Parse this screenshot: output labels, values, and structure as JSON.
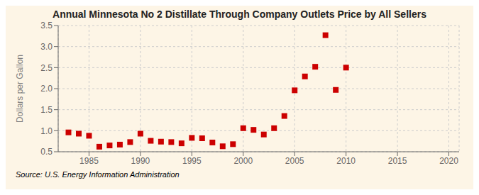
{
  "chart_data": {
    "type": "scatter",
    "title": "Annual Minnesota No 2 Distillate Through Company Outlets Price by All Sellers",
    "ylabel": "Dollars per Gallon",
    "annotations": [
      "Source: U.S. Energy Information Administration"
    ],
    "x": [
      1983,
      1984,
      1985,
      1986,
      1987,
      1988,
      1989,
      1990,
      1991,
      1992,
      1993,
      1994,
      1995,
      1996,
      1997,
      1998,
      1999,
      2000,
      2001,
      2002,
      2003,
      2004,
      2005,
      2006,
      2007,
      2008,
      2009,
      2010
    ],
    "values": [
      0.96,
      0.93,
      0.88,
      0.62,
      0.65,
      0.67,
      0.73,
      0.93,
      0.76,
      0.74,
      0.73,
      0.7,
      0.83,
      0.82,
      0.72,
      0.63,
      0.68,
      1.06,
      1.02,
      0.91,
      1.06,
      1.35,
      1.96,
      2.29,
      2.52,
      3.27,
      1.97,
      2.5
    ],
    "color": "#cc0000",
    "marker": "square",
    "xlim": [
      1982,
      2021
    ],
    "ylim": [
      0.5,
      3.5
    ],
    "xticks": [
      1985,
      1990,
      1995,
      2000,
      2005,
      2010,
      2015,
      2020
    ],
    "yticks": [
      0.5,
      {
        "value": 1,
        "label": "1.0"
      },
      1.5,
      {
        "value": 2,
        "label": "2.0"
      },
      2.5,
      {
        "value": 3,
        "label": "3.0"
      },
      3.5
    ],
    "grid": true
  }
}
